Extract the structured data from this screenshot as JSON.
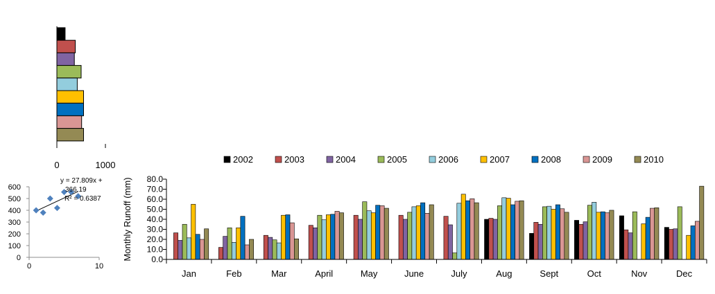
{
  "chart_data": [
    {
      "type": "bar",
      "orientation": "horizontal",
      "categories": [
        "2002",
        "2003",
        "2004",
        "2005",
        "2006",
        "2007",
        "2008",
        "2009",
        "2010"
      ],
      "values": [
        170,
        380,
        360,
        500,
        420,
        550,
        550,
        510,
        550
      ],
      "xlim": [
        0,
        1000
      ],
      "xticks": [
        "0",
        "1000"
      ],
      "colors": [
        "#000000",
        "#c0504d",
        "#8064a2",
        "#9bbb59",
        "#93cddd",
        "#ffc000",
        "#0070c0",
        "#d99694",
        "#948a54"
      ]
    },
    {
      "type": "scatter",
      "x": [
        1,
        2,
        3,
        4,
        5,
        6,
        7
      ],
      "y": [
        400,
        380,
        500,
        420,
        555,
        555,
        520
      ],
      "trendline": {
        "slope": 27.809,
        "intercept": 366.19
      },
      "annotation_lines": [
        "y = 27.809x +",
        "366.19",
        "R² = 0.6387"
      ],
      "xlim": [
        0,
        10
      ],
      "ylim": [
        0,
        600
      ],
      "xticks": [
        "0",
        "10"
      ],
      "yticks": [
        "0",
        "100",
        "200",
        "300",
        "400",
        "500",
        "600"
      ],
      "marker_color": "#4f81bd"
    },
    {
      "type": "bar",
      "ylabel": "Monthly  Runoff (mm)",
      "ylim": [
        0,
        80
      ],
      "yticks": [
        "0.0",
        "10.0",
        "20.0",
        "30.0",
        "40.0",
        "50.0",
        "60.0",
        "70.0",
        "80.0"
      ],
      "legend": "top",
      "categories": [
        "Jan",
        "Feb",
        "Mar",
        "April",
        "May",
        "June",
        "July",
        "Aug",
        "Sept",
        "Oct",
        "Nov",
        "Dec"
      ],
      "series": [
        {
          "name": "2002",
          "color": "#000000",
          "values": [
            0,
            0,
            0,
            0,
            0,
            0,
            0,
            40,
            26,
            39,
            43.5,
            32
          ]
        },
        {
          "name": "2003",
          "color": "#c0504d",
          "values": [
            26.5,
            12,
            24,
            34,
            44,
            44,
            43,
            41,
            37,
            35,
            29.5,
            30
          ]
        },
        {
          "name": "2004",
          "color": "#8064a2",
          "values": [
            19,
            23,
            22,
            31.5,
            40,
            40,
            34.5,
            40,
            35,
            37.5,
            26.5,
            30.5
          ]
        },
        {
          "name": "2005",
          "color": "#9bbb59",
          "values": [
            35,
            31.5,
            19.5,
            44,
            57.5,
            47,
            6.5,
            53.5,
            52.5,
            54,
            47.5,
            52.5
          ]
        },
        {
          "name": "2006",
          "color": "#93cddd",
          "values": [
            21.5,
            17,
            16.5,
            39.5,
            48.5,
            52.5,
            56,
            61.5,
            53,
            57,
            0,
            0
          ]
        },
        {
          "name": "2007",
          "color": "#ffc000",
          "values": [
            55,
            31.5,
            44,
            44.5,
            46.5,
            53.5,
            65,
            61,
            50,
            47,
            35.5,
            24
          ]
        },
        {
          "name": "2008",
          "color": "#0070c0",
          "values": [
            25,
            43,
            44.5,
            45,
            54,
            56.5,
            58.5,
            54.5,
            54.5,
            47.5,
            42,
            33.5
          ]
        },
        {
          "name": "2009",
          "color": "#d99694",
          "values": [
            20,
            14.5,
            36.5,
            48,
            53.5,
            46,
            60.5,
            58,
            50.5,
            46.5,
            51,
            38
          ]
        },
        {
          "name": "2010",
          "color": "#948a54",
          "values": [
            30.5,
            20,
            20.5,
            46.5,
            51,
            54.5,
            56.5,
            58.5,
            47,
            49,
            51.5,
            73
          ]
        }
      ]
    }
  ]
}
